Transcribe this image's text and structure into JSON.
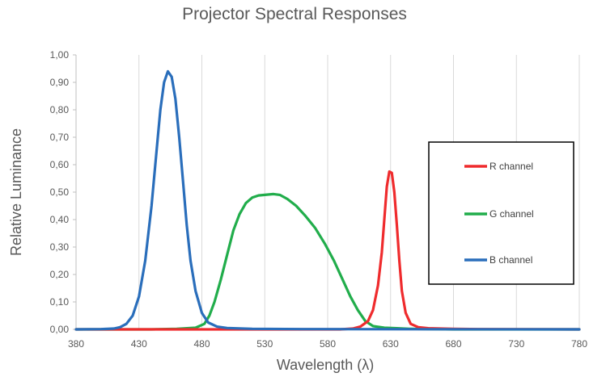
{
  "chart_data": {
    "type": "line",
    "title": "Projector Spectral Responses",
    "xlabel": "Wavelength (λ)",
    "ylabel": "Relative Luminance",
    "xlim": [
      380,
      780
    ],
    "ylim": [
      0,
      1
    ],
    "x_ticks": [
      "380",
      "430",
      "480",
      "530",
      "580",
      "630",
      "680",
      "730",
      "780"
    ],
    "y_ticks": [
      "0,00",
      "0,10",
      "0,20",
      "0,30",
      "0,40",
      "0,50",
      "0,60",
      "0,70",
      "0,80",
      "0,90",
      "1,00"
    ],
    "grid": "vertical",
    "legend_position": "right",
    "series": [
      {
        "name": "R channel",
        "color": "#ef2b2d",
        "points": [
          [
            380,
            0
          ],
          [
            590,
            0
          ],
          [
            600,
            0.003
          ],
          [
            606,
            0.01
          ],
          [
            612,
            0.03
          ],
          [
            616,
            0.07
          ],
          [
            620,
            0.16
          ],
          [
            623,
            0.28
          ],
          [
            625,
            0.4
          ],
          [
            627,
            0.52
          ],
          [
            629,
            0.575
          ],
          [
            631,
            0.57
          ],
          [
            633,
            0.5
          ],
          [
            635,
            0.38
          ],
          [
            637,
            0.25
          ],
          [
            639,
            0.14
          ],
          [
            642,
            0.06
          ],
          [
            646,
            0.02
          ],
          [
            652,
            0.008
          ],
          [
            660,
            0.004
          ],
          [
            680,
            0.002
          ],
          [
            700,
            0.001
          ],
          [
            780,
            0
          ]
        ]
      },
      {
        "name": "G channel",
        "color": "#21ad4b",
        "points": [
          [
            380,
            0
          ],
          [
            440,
            0
          ],
          [
            460,
            0.002
          ],
          [
            475,
            0.006
          ],
          [
            482,
            0.02
          ],
          [
            486,
            0.05
          ],
          [
            490,
            0.1
          ],
          [
            495,
            0.18
          ],
          [
            500,
            0.27
          ],
          [
            505,
            0.36
          ],
          [
            510,
            0.42
          ],
          [
            515,
            0.46
          ],
          [
            520,
            0.48
          ],
          [
            525,
            0.488
          ],
          [
            530,
            0.49
          ],
          [
            537,
            0.493
          ],
          [
            542,
            0.49
          ],
          [
            548,
            0.475
          ],
          [
            555,
            0.45
          ],
          [
            562,
            0.415
          ],
          [
            570,
            0.37
          ],
          [
            578,
            0.31
          ],
          [
            585,
            0.25
          ],
          [
            592,
            0.18
          ],
          [
            598,
            0.12
          ],
          [
            604,
            0.07
          ],
          [
            610,
            0.03
          ],
          [
            616,
            0.012
          ],
          [
            625,
            0.006
          ],
          [
            635,
            0.004
          ],
          [
            645,
            0.002
          ],
          [
            660,
            0.001
          ],
          [
            680,
            0
          ],
          [
            780,
            0
          ]
        ]
      },
      {
        "name": "B channel",
        "color": "#2a6ebb",
        "points": [
          [
            380,
            0
          ],
          [
            400,
            0.001
          ],
          [
            410,
            0.003
          ],
          [
            415,
            0.008
          ],
          [
            420,
            0.02
          ],
          [
            425,
            0.05
          ],
          [
            430,
            0.12
          ],
          [
            435,
            0.25
          ],
          [
            440,
            0.45
          ],
          [
            444,
            0.65
          ],
          [
            447,
            0.8
          ],
          [
            450,
            0.9
          ],
          [
            453,
            0.94
          ],
          [
            456,
            0.92
          ],
          [
            459,
            0.84
          ],
          [
            462,
            0.7
          ],
          [
            465,
            0.54
          ],
          [
            468,
            0.38
          ],
          [
            471,
            0.25
          ],
          [
            475,
            0.14
          ],
          [
            480,
            0.06
          ],
          [
            485,
            0.025
          ],
          [
            492,
            0.01
          ],
          [
            500,
            0.005
          ],
          [
            520,
            0.002
          ],
          [
            560,
            0.001
          ],
          [
            780,
            0
          ]
        ]
      }
    ]
  }
}
